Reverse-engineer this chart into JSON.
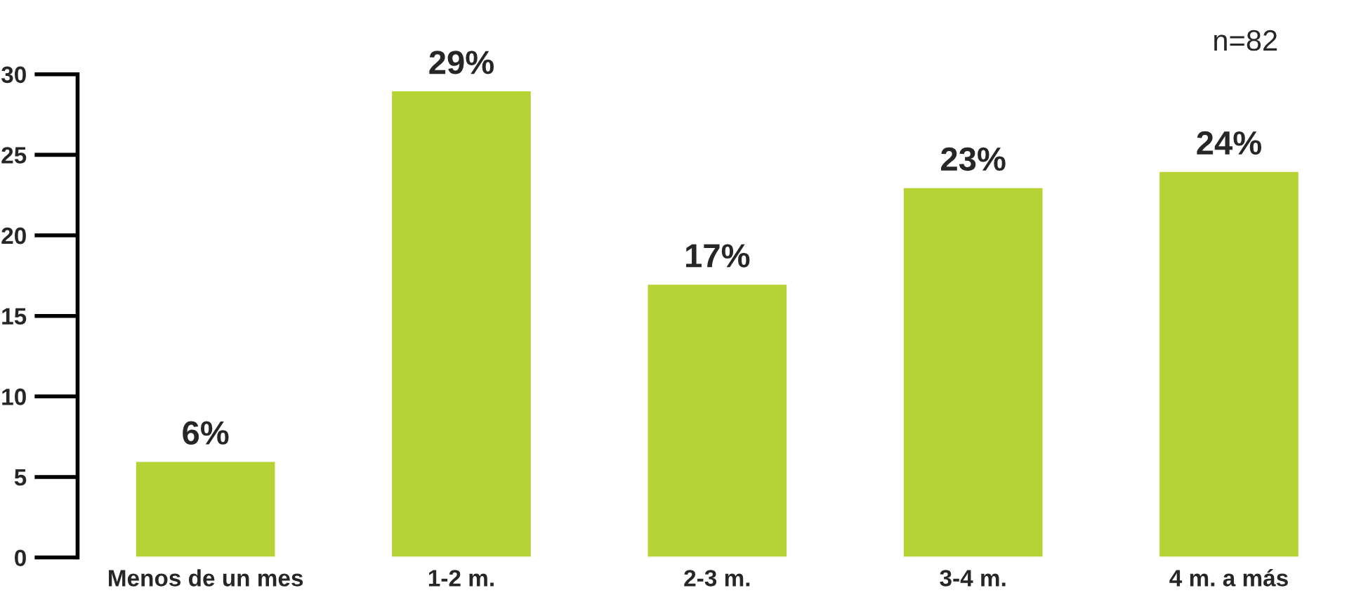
{
  "chart_data": {
    "type": "bar",
    "categories": [
      "Menos de un mes",
      "1-2 m.",
      "2-3 m.",
      "3-4 m.",
      "4 m. a más"
    ],
    "values": [
      6,
      29,
      17,
      23,
      24
    ],
    "value_labels": [
      "6%",
      "29%",
      "17%",
      "23%",
      "24%"
    ],
    "color": "#b5d334",
    "ylim": [
      0,
      30
    ],
    "yticks": [
      0,
      5,
      10,
      15,
      20,
      25,
      30
    ],
    "grid": false,
    "legend": false,
    "annotations": [
      "n=82"
    ]
  }
}
